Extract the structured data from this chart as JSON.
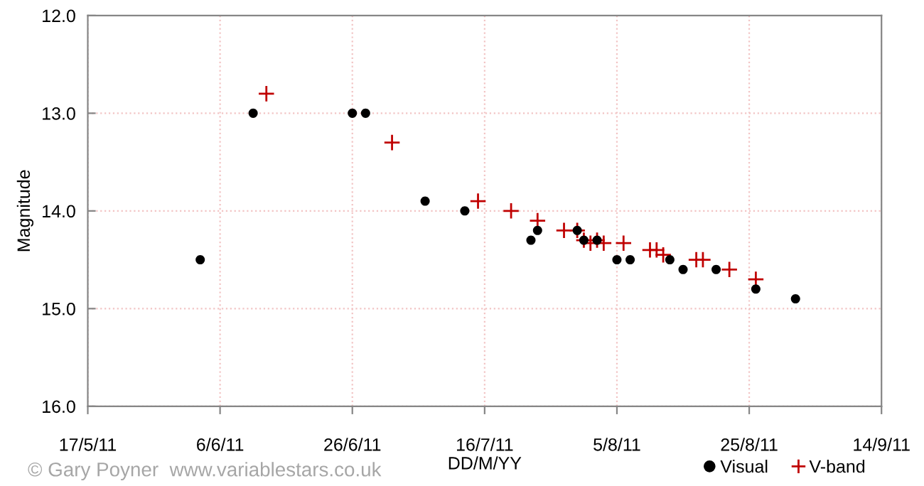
{
  "chart_data": {
    "type": "scatter",
    "xlabel": "DD/M/YY",
    "ylabel": "Magnitude",
    "xlim": [
      "2011-05-17",
      "2011-09-14"
    ],
    "xticks": [
      {
        "value": "2011-05-17",
        "label": "17/5/11"
      },
      {
        "value": "2011-06-06",
        "label": "6/6/11"
      },
      {
        "value": "2011-06-26",
        "label": "26/6/11"
      },
      {
        "value": "2011-07-16",
        "label": "16/7/11"
      },
      {
        "value": "2011-08-05",
        "label": "5/8/11"
      },
      {
        "value": "2011-08-25",
        "label": "25/8/11"
      },
      {
        "value": "2011-09-14",
        "label": "14/9/11"
      }
    ],
    "ylim": [
      16,
      12
    ],
    "yticks": [
      {
        "value": 12,
        "label": "12.0"
      },
      {
        "value": 13,
        "label": "13.0"
      },
      {
        "value": 14,
        "label": "14.0"
      },
      {
        "value": 15,
        "label": "15.0"
      },
      {
        "value": 16,
        "label": "16.0"
      }
    ],
    "grid": true,
    "legend": "bottom right",
    "annotations": [
      "© Gary Poyner  www.variablestars.co.uk"
    ],
    "series": [
      {
        "name": "Visual",
        "color": "#000000",
        "marker": "circle",
        "x": [
          "2011-06-03",
          "2011-06-11",
          "2011-06-26",
          "2011-06-28",
          "2011-07-07",
          "2011-07-13",
          "2011-07-23",
          "2011-07-24",
          "2011-07-30",
          "2011-07-31",
          "2011-08-02",
          "2011-08-05",
          "2011-08-07",
          "2011-08-13",
          "2011-08-15",
          "2011-08-20",
          "2011-08-26",
          "2011-09-01"
        ],
        "values": [
          14.5,
          13.0,
          13.0,
          13.0,
          13.9,
          14.0,
          14.3,
          14.2,
          14.2,
          14.3,
          14.3,
          14.5,
          14.5,
          14.5,
          14.6,
          14.6,
          14.8,
          14.9
        ]
      },
      {
        "name": "V-band",
        "color": "#c00000",
        "marker": "cross",
        "x": [
          "2011-06-13",
          "2011-07-02",
          "2011-07-15",
          "2011-07-20",
          "2011-07-24",
          "2011-07-28",
          "2011-07-30",
          "2011-07-31",
          "2011-08-01",
          "2011-08-02",
          "2011-08-03",
          "2011-08-06",
          "2011-08-10",
          "2011-08-11",
          "2011-08-12",
          "2011-08-17",
          "2011-08-18",
          "2011-08-22",
          "2011-08-26"
        ],
        "values": [
          12.8,
          13.3,
          13.9,
          14.0,
          14.1,
          14.2,
          14.2,
          14.3,
          14.33,
          14.3,
          14.33,
          14.33,
          14.4,
          14.4,
          14.45,
          14.5,
          14.5,
          14.6,
          14.7
        ]
      }
    ]
  }
}
